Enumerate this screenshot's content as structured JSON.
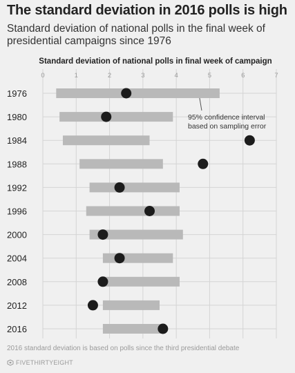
{
  "title": "The standard deviation in 2016 polls is high",
  "subtitle": "Standard deviation of national polls in the final week of presidential campaigns since 1976",
  "footnote": "2016 standard deviation is based on polls since the third presidential debate",
  "brand": "FIVETHIRTYEIGHT",
  "colors": {
    "background": "#f0f0f0",
    "grid": "#d4d4d4",
    "bar": "#b9b9b9",
    "dot": "#1c1c1c",
    "tick_label": "#9a9a9a",
    "year_label": "#222222"
  },
  "chart_data": {
    "type": "scatter",
    "title": "Standard deviation of national polls in final week of campaign",
    "xlim": [
      0,
      7
    ],
    "x_ticks": [
      "0",
      "1",
      "2",
      "3",
      "4",
      "5",
      "6",
      "7"
    ],
    "grid": true,
    "categories": [
      "1976",
      "1980",
      "1984",
      "1988",
      "1992",
      "1996",
      "2000",
      "2004",
      "2008",
      "2012",
      "2016"
    ],
    "series": [
      {
        "kind": "interval",
        "low": [
          0.4,
          0.5,
          0.6,
          1.1,
          1.4,
          1.3,
          1.4,
          1.8,
          1.8,
          1.8,
          1.8
        ],
        "high": [
          5.3,
          3.9,
          3.2,
          3.6,
          4.1,
          4.1,
          4.2,
          3.9,
          4.1,
          3.5,
          3.6
        ]
      },
      {
        "kind": "point",
        "values": [
          2.5,
          1.9,
          6.2,
          4.8,
          2.3,
          3.2,
          1.8,
          2.3,
          1.8,
          1.5,
          3.6
        ]
      }
    ],
    "annotation": {
      "lines": [
        "95% confidence interval",
        "based on sampling error"
      ],
      "points_to_category": "1976",
      "points_to_x": 4.7
    }
  }
}
